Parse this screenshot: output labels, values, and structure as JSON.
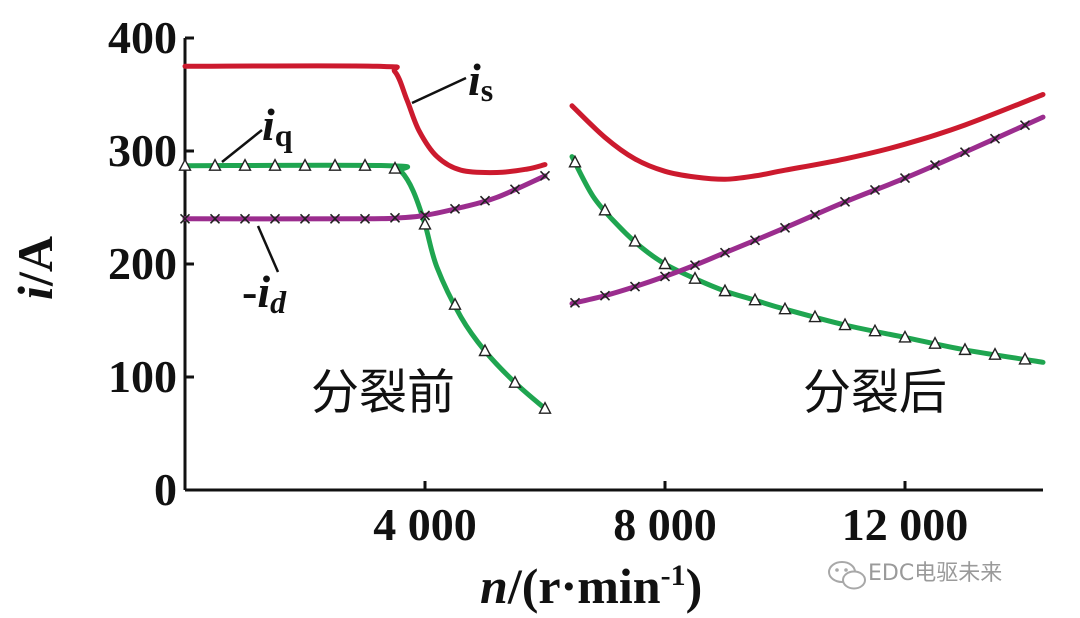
{
  "chart_data": {
    "type": "line",
    "ylabel": {
      "sym": "i",
      "unit": "/A"
    },
    "xlabel": {
      "sym": "n",
      "unit": "/(r·min",
      "sup": "-1",
      "close": ")"
    },
    "xlim": [
      0,
      14300
    ],
    "ylim": [
      0,
      400
    ],
    "x_ticks": [
      {
        "value": 4000,
        "label": "4 000"
      },
      {
        "value": 8000,
        "label": "8 000"
      },
      {
        "value": 12000,
        "label": "12 000"
      }
    ],
    "y_ticks": [
      {
        "value": 0,
        "label": "0"
      },
      {
        "value": 100,
        "label": "100"
      },
      {
        "value": 200,
        "label": "200"
      },
      {
        "value": 300,
        "label": "300"
      },
      {
        "value": 400,
        "label": "400"
      }
    ],
    "regions": [
      {
        "label": "分裂前",
        "x": 3300,
        "y": 72
      },
      {
        "label": "分裂后",
        "x": 11500,
        "y": 72
      }
    ],
    "series": [
      {
        "name": "is",
        "color": "#cc1a2e",
        "marker": "none",
        "segments": [
          [
            [
              0,
              375
            ],
            [
              3200,
              375
            ],
            [
              3500,
              370
            ],
            [
              3700,
              345
            ],
            [
              3900,
              318
            ],
            [
              4200,
              295
            ],
            [
              4600,
              283
            ],
            [
              5200,
              281
            ],
            [
              5700,
              284
            ],
            [
              6000,
              288
            ]
          ],
          [
            [
              6450,
              340
            ],
            [
              7000,
              312
            ],
            [
              7500,
              293
            ],
            [
              8000,
              282
            ],
            [
              8500,
              277
            ],
            [
              9000,
              275
            ],
            [
              9500,
              278
            ],
            [
              10000,
              283
            ],
            [
              11000,
              293
            ],
            [
              12000,
              306
            ],
            [
              13000,
              323
            ],
            [
              14300,
              350
            ]
          ]
        ]
      },
      {
        "name": "iq",
        "color": "#1fa550",
        "marker": "triangle",
        "segments": [
          [
            [
              0,
              287
            ],
            [
              3400,
              287
            ],
            [
              3600,
              282
            ],
            [
              3800,
              265
            ],
            [
              4000,
              235
            ],
            [
              4200,
              197
            ],
            [
              4600,
              153
            ],
            [
              5000,
              123
            ],
            [
              5500,
              95
            ],
            [
              6000,
              72
            ]
          ],
          [
            [
              6450,
              295
            ],
            [
              6800,
              260
            ],
            [
              7200,
              235
            ],
            [
              7600,
              215
            ],
            [
              8000,
              200
            ],
            [
              8500,
              187
            ],
            [
              9000,
              176
            ],
            [
              9500,
              168
            ],
            [
              10000,
              160
            ],
            [
              11000,
              146
            ],
            [
              12000,
              135
            ],
            [
              13000,
              124
            ],
            [
              14300,
              113
            ]
          ]
        ]
      },
      {
        "name": "-id",
        "color": "#9b2d8e",
        "marker": "x",
        "segments": [
          [
            [
              0,
              240
            ],
            [
              3000,
              240
            ],
            [
              3600,
              241
            ],
            [
              4000,
              243
            ],
            [
              4600,
              250
            ],
            [
              5200,
              259
            ],
            [
              6000,
              278
            ]
          ],
          [
            [
              6450,
              165
            ],
            [
              7000,
              172
            ],
            [
              7500,
              180
            ],
            [
              8000,
              189
            ],
            [
              8500,
              199
            ],
            [
              9000,
              210
            ],
            [
              10000,
              232
            ],
            [
              11000,
              255
            ],
            [
              12000,
              276
            ],
            [
              13000,
              299
            ],
            [
              14300,
              330
            ]
          ]
        ]
      }
    ],
    "series_labels": [
      {
        "series": "is",
        "base": "i",
        "sub": "s"
      },
      {
        "series": "iq",
        "base": "i",
        "sub": "q"
      },
      {
        "series": "-id",
        "prefix": "-",
        "base": "i",
        "sub": "d"
      }
    ]
  },
  "watermark": {
    "icon": "wechat-icon",
    "text": "EDC电驱未来"
  }
}
